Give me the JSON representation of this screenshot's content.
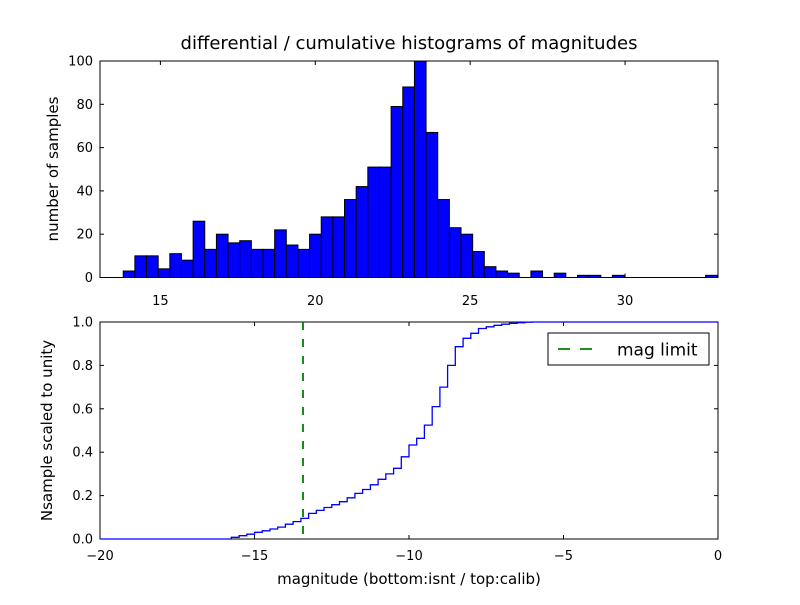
{
  "figure": {
    "background": "#ffffff",
    "frame_color": "#000000"
  },
  "chart_data": [
    {
      "type": "bar",
      "title": "differential / cumulative histograms of magnitudes",
      "ylabel": "number of samples",
      "xlabel": "",
      "x_range": [
        13.05,
        33.0
      ],
      "y_range": [
        0,
        100
      ],
      "x_ticks": {
        "values": [
          15,
          20,
          25,
          30
        ],
        "labels": [
          "15",
          "20",
          "25",
          "30"
        ]
      },
      "y_ticks": {
        "values": [
          0,
          20,
          40,
          60,
          80,
          100
        ],
        "labels": [
          "0",
          "20",
          "40",
          "60",
          "80",
          "100"
        ]
      },
      "bar_color": "#0000ff",
      "bar_edge_color": "#000000",
      "bin_start": 13.8,
      "bin_width": 0.376,
      "counts": [
        3,
        10,
        10,
        4,
        11,
        8,
        26,
        13,
        20,
        16,
        17,
        13,
        13,
        22,
        15,
        13,
        20,
        28,
        28,
        36,
        42,
        51,
        51,
        79,
        88,
        100,
        67,
        36,
        23,
        20,
        12,
        5,
        3,
        2,
        0,
        3,
        0,
        2,
        0,
        1,
        1,
        0,
        1,
        0,
        0,
        0,
        0,
        0,
        0,
        0,
        1
      ]
    },
    {
      "type": "line",
      "title": "",
      "ylabel": "Nsample scaled to unity",
      "xlabel": "magnitude (bottom:isnt / top:calib)",
      "x_range": [
        -20,
        0
      ],
      "y_range": [
        0.0,
        1.0
      ],
      "x_ticks": {
        "values": [
          -20,
          -15,
          -10,
          -5,
          0
        ],
        "labels": [
          "−20",
          "−15",
          "−10",
          "−5",
          "0"
        ]
      },
      "y_ticks": {
        "values": [
          0.0,
          0.2,
          0.4,
          0.6,
          0.8,
          1.0
        ],
        "labels": [
          "0.0",
          "0.2",
          "0.4",
          "0.6",
          "0.8",
          "1.0"
        ]
      },
      "line_color": "#0000ff",
      "start_level": 0.0,
      "steps": [
        [
          -15.75,
          0.008
        ],
        [
          -15.5,
          0.015
        ],
        [
          -15.25,
          0.022
        ],
        [
          -15.0,
          0.031
        ],
        [
          -14.75,
          0.038
        ],
        [
          -14.5,
          0.046
        ],
        [
          -14.25,
          0.055
        ],
        [
          -14.0,
          0.068
        ],
        [
          -13.75,
          0.08
        ],
        [
          -13.5,
          0.095
        ],
        [
          -13.25,
          0.118
        ],
        [
          -13.0,
          0.132
        ],
        [
          -12.75,
          0.145
        ],
        [
          -12.5,
          0.158
        ],
        [
          -12.25,
          0.172
        ],
        [
          -12.0,
          0.19
        ],
        [
          -11.75,
          0.21
        ],
        [
          -11.5,
          0.228
        ],
        [
          -11.25,
          0.25
        ],
        [
          -11.0,
          0.275
        ],
        [
          -10.75,
          0.3
        ],
        [
          -10.5,
          0.326
        ],
        [
          -10.25,
          0.379
        ],
        [
          -10.0,
          0.433
        ],
        [
          -9.75,
          0.464
        ],
        [
          -9.5,
          0.525
        ],
        [
          -9.25,
          0.61
        ],
        [
          -9.0,
          0.7
        ],
        [
          -8.75,
          0.8
        ],
        [
          -8.5,
          0.886
        ],
        [
          -8.25,
          0.925
        ],
        [
          -8.0,
          0.948
        ],
        [
          -7.75,
          0.97
        ],
        [
          -7.5,
          0.978
        ],
        [
          -7.25,
          0.985
        ],
        [
          -7.0,
          0.99
        ],
        [
          -6.75,
          0.994
        ],
        [
          -6.5,
          0.997
        ],
        [
          -6.25,
          0.999
        ],
        [
          -6.0,
          1.0
        ]
      ],
      "vline": {
        "x": -13.43,
        "color": "#008000",
        "style": "dashed",
        "label": "mag limit"
      },
      "legend": {
        "label": "mag limit",
        "position": "upper right"
      }
    }
  ]
}
